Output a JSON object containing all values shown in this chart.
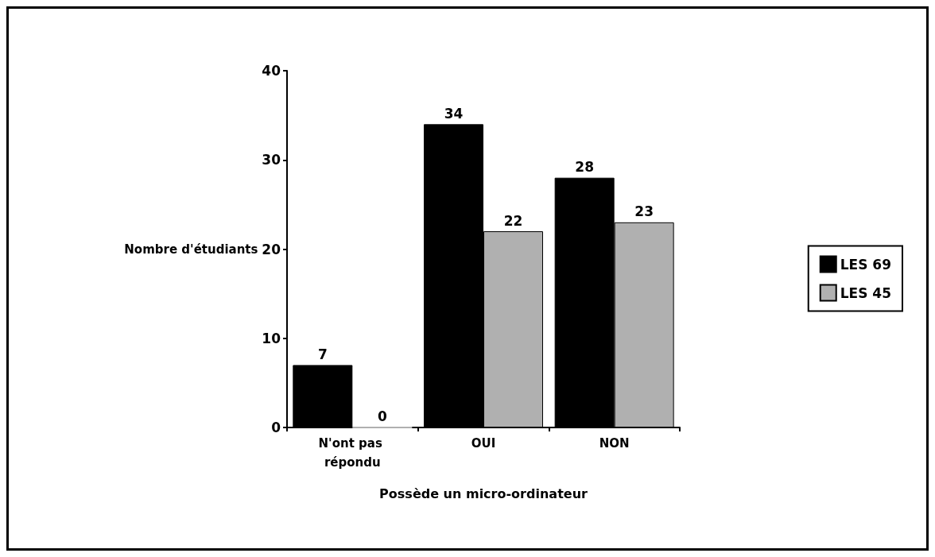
{
  "chart_data": {
    "type": "bar",
    "xlabel": "Possède un micro-ordinateur",
    "ylabel": "Nombre d'étudiants",
    "categories": [
      "N'ont pas répondu",
      "OUI",
      "NON"
    ],
    "series": [
      {
        "name": "LES 69",
        "color": "#000000",
        "values": [
          7,
          34,
          28
        ]
      },
      {
        "name": "LES 45",
        "color": "#b0b0b0",
        "values": [
          0,
          22,
          23
        ]
      }
    ],
    "ylim": [
      0,
      40
    ],
    "yticks": [
      0,
      10,
      20,
      30,
      40
    ],
    "data_labels": true,
    "grid": false,
    "legend": "right"
  }
}
